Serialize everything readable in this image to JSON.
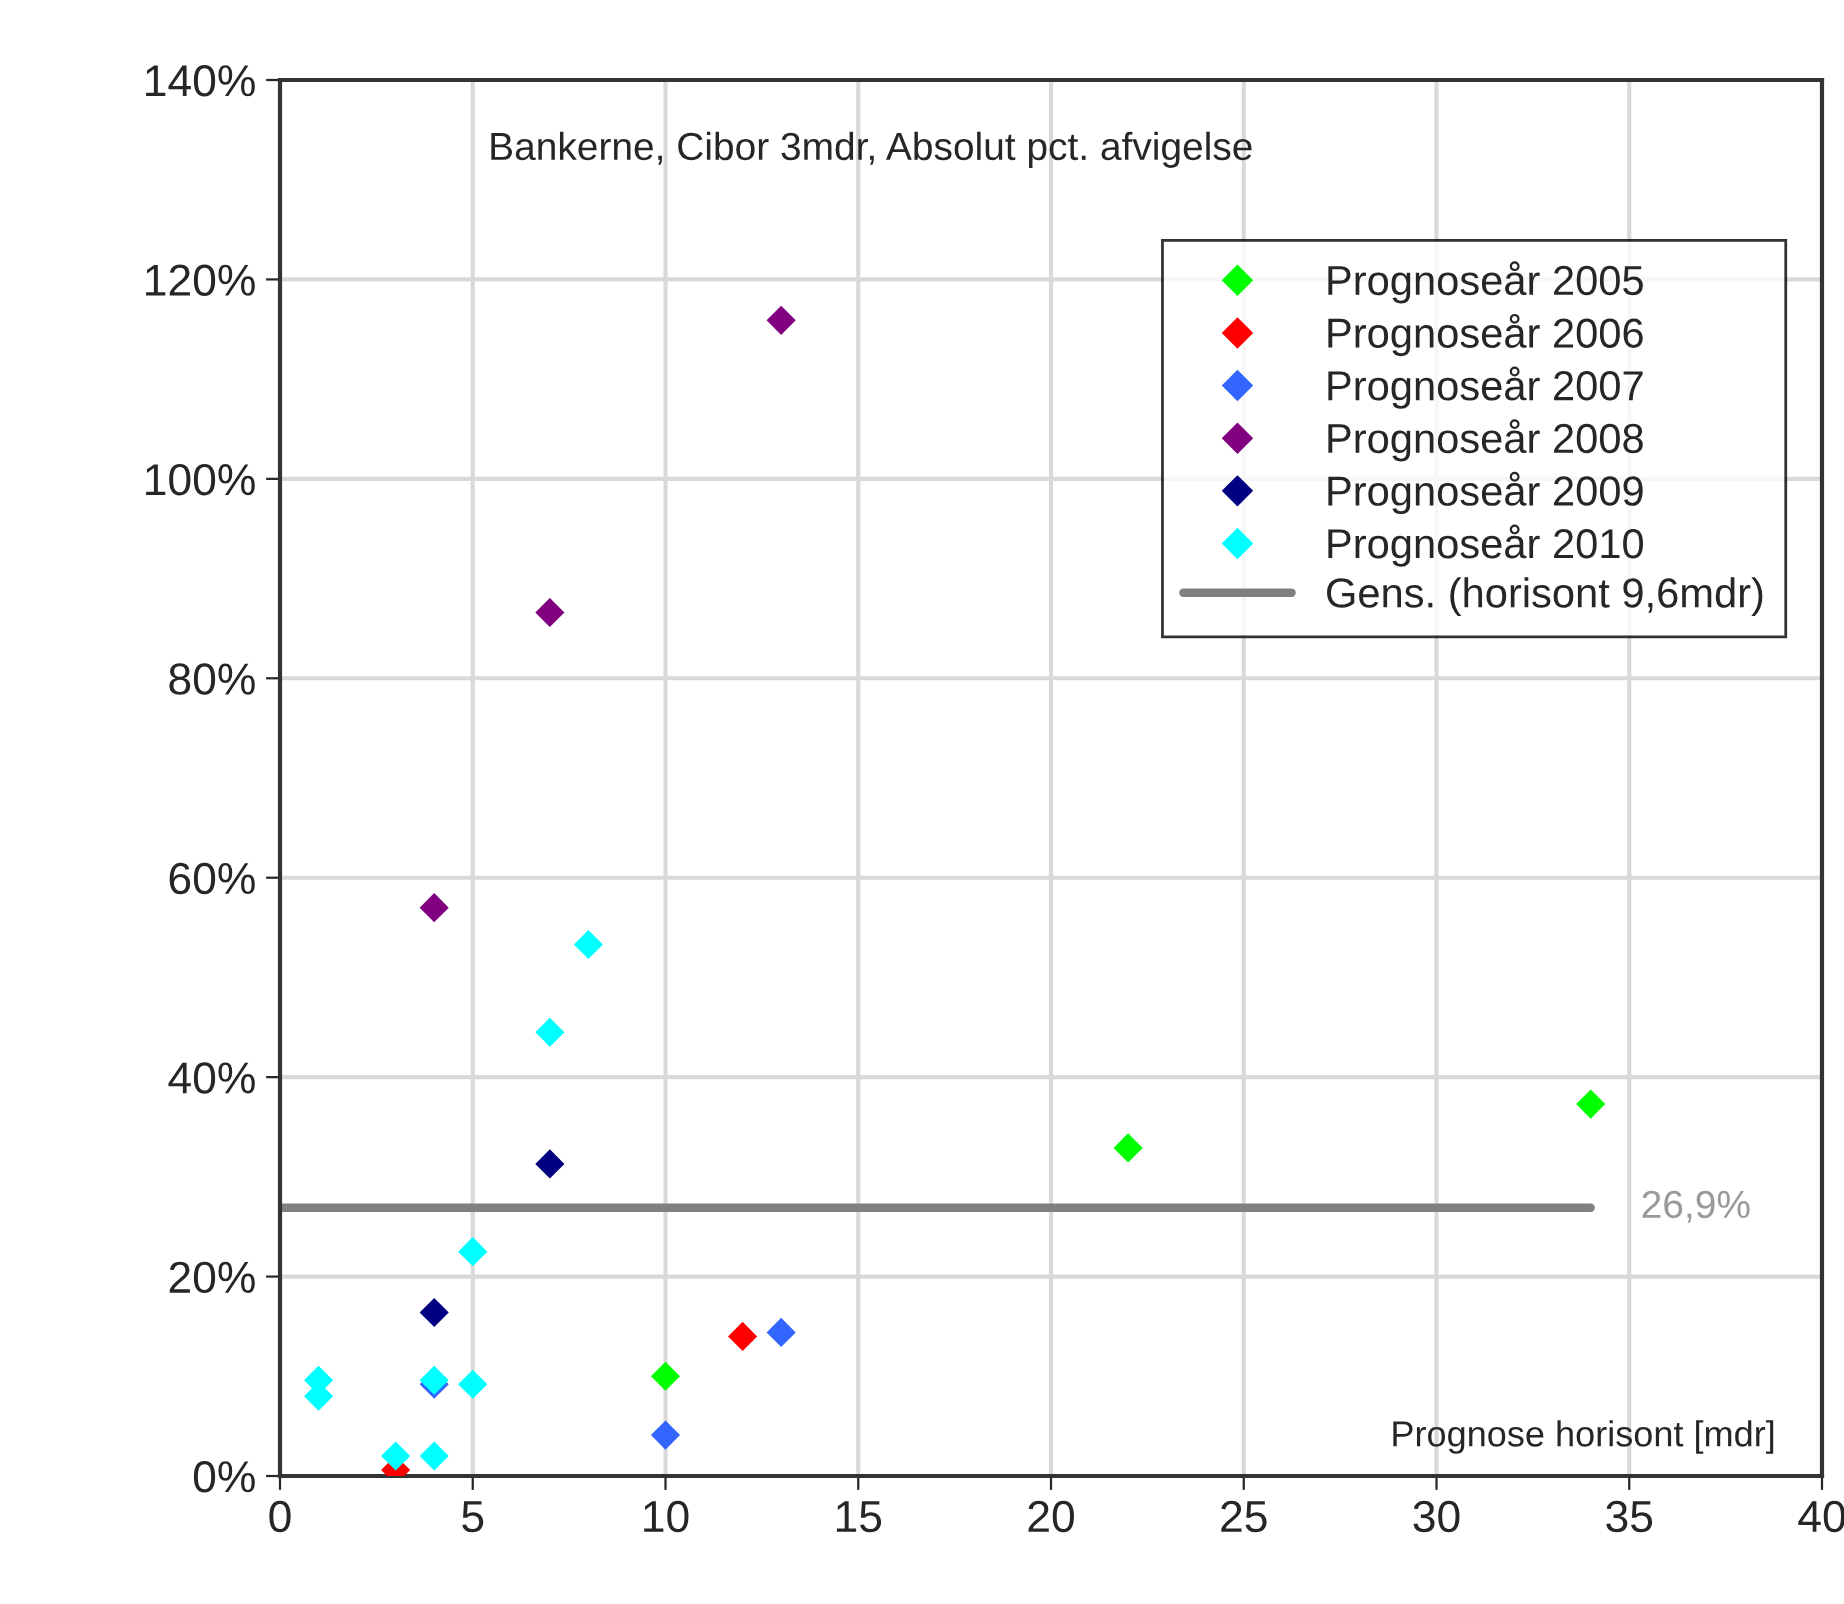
{
  "chart_data": {
    "type": "scatter",
    "title": "Bankerne, Cibor 3mdr, Absolut pct. afvigelse",
    "xlabel": "Prognose horisont [mdr]",
    "series": [
      {
        "name": "Prognoseår 2005",
        "color": "#00ff00",
        "x": [
          10,
          22,
          34
        ],
        "values": [
          10.0,
          32.9,
          37.3
        ]
      },
      {
        "name": "Prognoseår 2006",
        "color": "#ff0000",
        "x": [
          3,
          12
        ],
        "values": [
          0.6,
          14.0
        ]
      },
      {
        "name": "Prognoseår 2007",
        "color": "#3366ff",
        "x": [
          4,
          10,
          13
        ],
        "values": [
          9.2,
          4.1,
          14.4
        ]
      },
      {
        "name": "Prognoseår 2008",
        "color": "#800080",
        "x": [
          4,
          7,
          13
        ],
        "values": [
          57.0,
          86.6,
          115.9
        ]
      },
      {
        "name": "Prognoseår 2009",
        "color": "#000080",
        "x": [
          4,
          7
        ],
        "values": [
          16.4,
          31.3
        ]
      },
      {
        "name": "Prognoseår 2010",
        "color": "#00ffff",
        "x": [
          1,
          1,
          3,
          4,
          4,
          5,
          5,
          7,
          8
        ],
        "values": [
          9.6,
          8.0,
          2.0,
          9.6,
          2.0,
          9.2,
          22.5,
          44.5,
          53.3
        ]
      },
      {
        "name": "Gens. (horisont 9,6mdr)",
        "type": "line",
        "marker": "none",
        "color": "#808080",
        "x": [
          0,
          34
        ],
        "values": [
          26.9,
          26.9
        ]
      }
    ],
    "annotations": [
      {
        "text": "26,9%",
        "x": 34,
        "y": 26.9
      }
    ],
    "xlim": [
      0,
      40
    ],
    "xticks": [
      0,
      5,
      10,
      15,
      20,
      25,
      30,
      35,
      40
    ],
    "ylim": [
      0,
      140
    ],
    "yticks": [
      {
        "value": 0,
        "label": "0%"
      },
      {
        "value": 20,
        "label": "20%"
      },
      {
        "value": 40,
        "label": "40%"
      },
      {
        "value": 60,
        "label": "60%"
      },
      {
        "value": 80,
        "label": "80%"
      },
      {
        "value": 100,
        "label": "100%"
      },
      {
        "value": 120,
        "label": "120%"
      },
      {
        "value": 140,
        "label": "140%"
      }
    ],
    "grid": true,
    "legend": "top right",
    "marker": "diamond"
  }
}
